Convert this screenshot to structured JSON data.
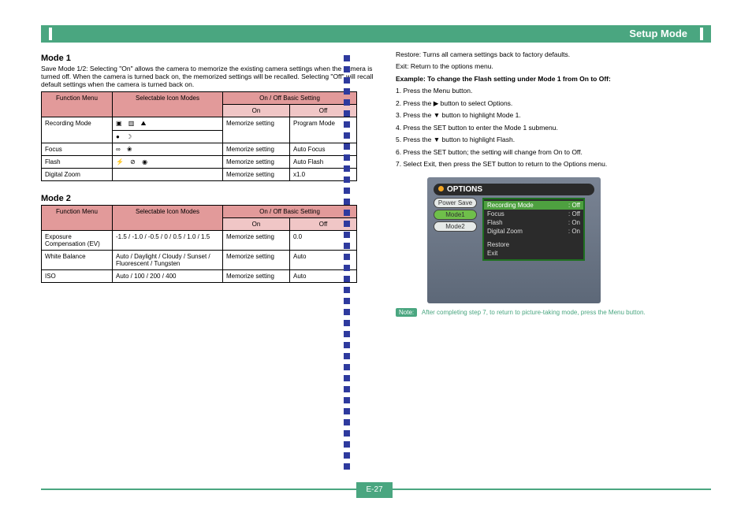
{
  "header": {
    "title": "Setup Mode"
  },
  "left": {
    "mode1": {
      "heading": "Mode 1",
      "sub": "Save Mode 1/2: Selecting \"On\" allows the camera to memorize the existing camera settings when the camera is turned off. When the camera is turned back on, the memorized settings will be recalled. Selecting \"Off\" will recall default settings when the camera is turned back on.",
      "cols": {
        "c1": "Function Menu",
        "c2": "Selectable Icon Modes",
        "c3": "On / Off Basic Setting",
        "c3a": "On",
        "c3b": "Off"
      },
      "rows": [
        {
          "fn": "Recording Mode",
          "icons": "▣ ▥ ⛰",
          "on": "Memorize setting",
          "off": "Program Mode"
        },
        {
          "fn": "",
          "icons": "● ☽",
          "on": "",
          "off": ""
        },
        {
          "fn": "Focus",
          "icons": "∞ ❀",
          "on": "Memorize setting",
          "off": "Auto Focus"
        },
        {
          "fn": "Flash",
          "icons": "⚡ ⊘ ◉",
          "on": "Memorize setting",
          "off": "Auto Flash"
        },
        {
          "fn": "Digital Zoom",
          "icons": "",
          "on": "Memorize setting",
          "off": "x1.0"
        }
      ]
    },
    "mode2": {
      "heading": "Mode 2",
      "cols": {
        "c1": "Function Menu",
        "c2": "Selectable Icon Modes",
        "c3": "On / Off Basic Setting",
        "c3a": "On",
        "c3b": "Off"
      },
      "rows": [
        {
          "fn": "Exposure Compensation (EV)",
          "modes": "-1.5 / -1.0 / -0.5 / 0 / 0.5 / 1.0 / 1.5",
          "on": "Memorize setting",
          "off": "0.0"
        },
        {
          "fn": "White Balance",
          "modes": "Auto / Daylight / Cloudy / Sunset / Fluorescent / Tungsten",
          "on": "Memorize setting",
          "off": "Auto"
        },
        {
          "fn": "ISO",
          "modes": "Auto / 100 / 200 / 400",
          "on": "Memorize setting",
          "off": "Auto"
        }
      ]
    }
  },
  "right": {
    "restore": "Restore: Turns all camera settings back to factory defaults.",
    "exit": "Exit: Return to the options menu.",
    "example_heading": "Example: To change the Flash setting under Mode 1 from On to Off:",
    "steps": [
      "1. Press the Menu button.",
      "2. Press the ▶ button to select Options.",
      "3. Press the ▼ button to highlight Mode 1.",
      "4. Press the SET button to enter the Mode 1 submenu.",
      "5. Press the ▼ button to highlight Flash.",
      "6. Press the SET button; the setting will change from On to Off.",
      "7. Select Exit, then press the SET button to return to the Options menu."
    ],
    "note_label": "Note:",
    "note_text": "After completing step 7, to return to picture-taking mode, press the Menu button.",
    "options_panel": {
      "title": "OPTIONS",
      "tabs": [
        "Power Save",
        "Mode1",
        "Mode2"
      ],
      "menu": [
        {
          "label": "Recording Mode",
          "val": "Off",
          "sel": true
        },
        {
          "label": "Focus",
          "val": "Off",
          "sel": false
        },
        {
          "label": "Flash",
          "val": "On",
          "sel": false
        },
        {
          "label": "Digital Zoom",
          "val": "On",
          "sel": false
        }
      ],
      "footer": [
        "Restore",
        "Exit"
      ]
    }
  },
  "page": "E-27"
}
